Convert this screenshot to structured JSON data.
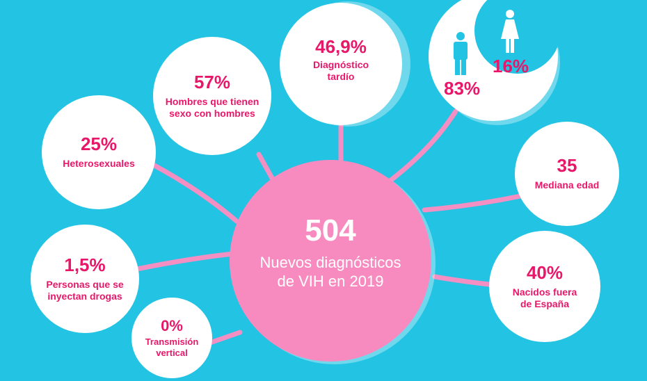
{
  "center": {
    "value": "504",
    "label_line1": "Nuevos diagnósticos",
    "label_line2": "de VIH en 2019"
  },
  "bubbles": [
    {
      "value": "25%",
      "label": "Heterosexuales"
    },
    {
      "value": "57%",
      "label_line1": "Hombres que tienen",
      "label_line2": "sexo con hombres"
    },
    {
      "value": "46,9%",
      "label_line1": "Diagnóstico",
      "label_line2": "tardío"
    },
    {
      "value": "35",
      "label": "Mediana edad"
    },
    {
      "value": "40%",
      "label_line1": "Nacidos fuera",
      "label_line2": "de España"
    },
    {
      "value": "1,5%",
      "label_line1": "Personas que se",
      "label_line2": "inyectan drogas"
    },
    {
      "value": "0%",
      "label_line1": "Transmisión",
      "label_line2": "vertical"
    }
  ],
  "gender": {
    "men": "83%",
    "women": "16%",
    "men_icon": "male-person-icon",
    "women_icon": "female-person-icon"
  },
  "colors": {
    "background": "#22c3e3",
    "accent": "#e8176a",
    "center": "#f78bc0",
    "links": "#f38fc2"
  }
}
